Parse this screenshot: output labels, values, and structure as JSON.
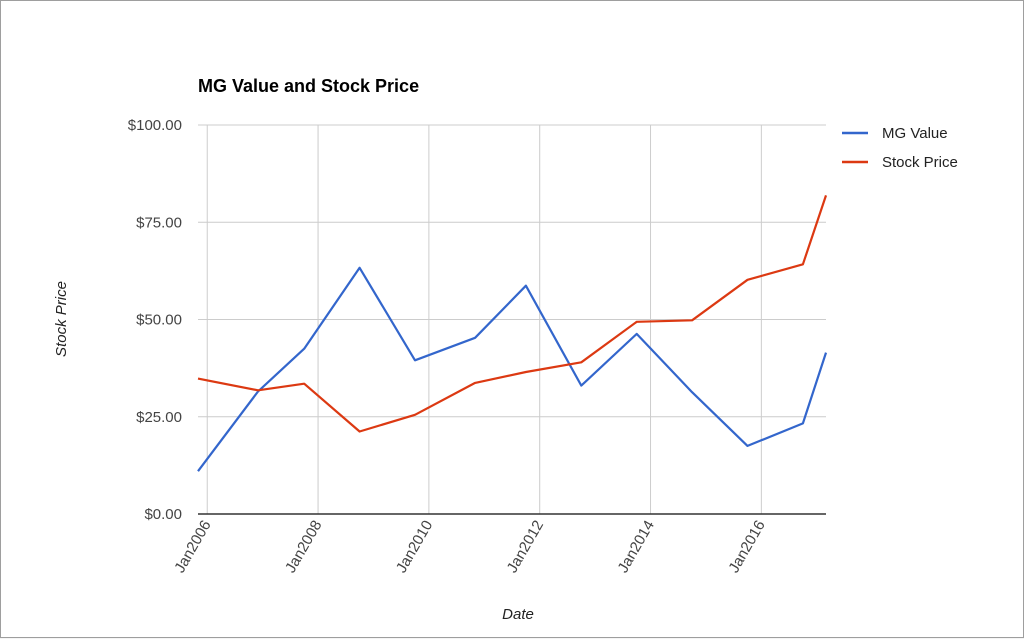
{
  "chart_data": {
    "type": "line",
    "title": "MG Value and Stock Price",
    "xlabel": "Date",
    "ylabel": "Stock Price",
    "x": [
      "2005-11",
      "2006-12",
      "2007-10",
      "2008-10",
      "2009-10",
      "2010-11",
      "2011-10",
      "2012-10",
      "2013-10",
      "2014-10",
      "2015-10",
      "2016-10",
      "2017-03"
    ],
    "series": [
      {
        "name": "MG Value",
        "color": "#3366cc",
        "values": [
          11.0,
          31.5,
          42.5,
          63.3,
          39.5,
          45.3,
          58.7,
          33.0,
          46.3,
          31.3,
          17.5,
          23.3,
          41.5
        ]
      },
      {
        "name": "Stock Price",
        "color": "#dc3912",
        "values": [
          34.8,
          31.8,
          33.5,
          21.2,
          25.5,
          33.7,
          36.5,
          39.0,
          49.4,
          49.8,
          60.2,
          64.2,
          81.9
        ]
      }
    ],
    "xticks": [
      "Jan2006",
      "Jan2008",
      "Jan2010",
      "Jan2012",
      "Jan2014",
      "Jan2016"
    ],
    "xtick_values": [
      "2006-01",
      "2008-01",
      "2010-01",
      "2012-01",
      "2014-01",
      "2016-01"
    ],
    "yticks": [
      "$0.00",
      "$25.00",
      "$50.00",
      "$75.00",
      "$100.00"
    ],
    "ytick_values": [
      0,
      25,
      50,
      75,
      100
    ],
    "ylim": [
      0,
      100
    ],
    "xlim": [
      "2005-11",
      "2017-03"
    ],
    "grid": true,
    "legend": "right"
  }
}
